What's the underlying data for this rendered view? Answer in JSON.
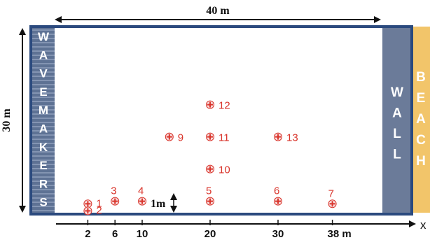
{
  "top_dimension": "40 m",
  "side_dimension": "30 m",
  "gap_label": "1m",
  "x_axis_label": "x",
  "wavemaker_letters": [
    "W",
    "A",
    "V",
    "E",
    "M",
    "A",
    "K",
    "E",
    "R",
    "S"
  ],
  "wall_letters": [
    "W",
    "A",
    "L",
    "L"
  ],
  "beach_letters": [
    "B",
    "E",
    "A",
    "C",
    "H"
  ],
  "x_ticks": [
    "2",
    "6",
    "10",
    "20",
    "30",
    "38 m"
  ],
  "gauges": [
    {
      "id": "1",
      "x": 2,
      "y": 1.6
    },
    {
      "id": "2",
      "x": 2,
      "y": 0.5
    },
    {
      "id": "3",
      "x": 6,
      "y": 2
    },
    {
      "id": "4",
      "x": 10,
      "y": 2
    },
    {
      "id": "5",
      "x": 20,
      "y": 2
    },
    {
      "id": "6",
      "x": 30,
      "y": 2
    },
    {
      "id": "7",
      "x": 38,
      "y": 1.6
    },
    {
      "id": "9",
      "x": 14,
      "y": 12
    },
    {
      "id": "11",
      "x": 20,
      "y": 12
    },
    {
      "id": "13",
      "x": 30,
      "y": 12
    },
    {
      "id": "10",
      "x": 20,
      "y": 7
    },
    {
      "id": "12",
      "x": 20,
      "y": 17
    }
  ],
  "colors": {
    "frame": "#2b4a7e",
    "wavemaker": "#5e7294",
    "wall": "#6b7b99",
    "beach": "#f2c56a",
    "gauge": "#d9342b"
  }
}
